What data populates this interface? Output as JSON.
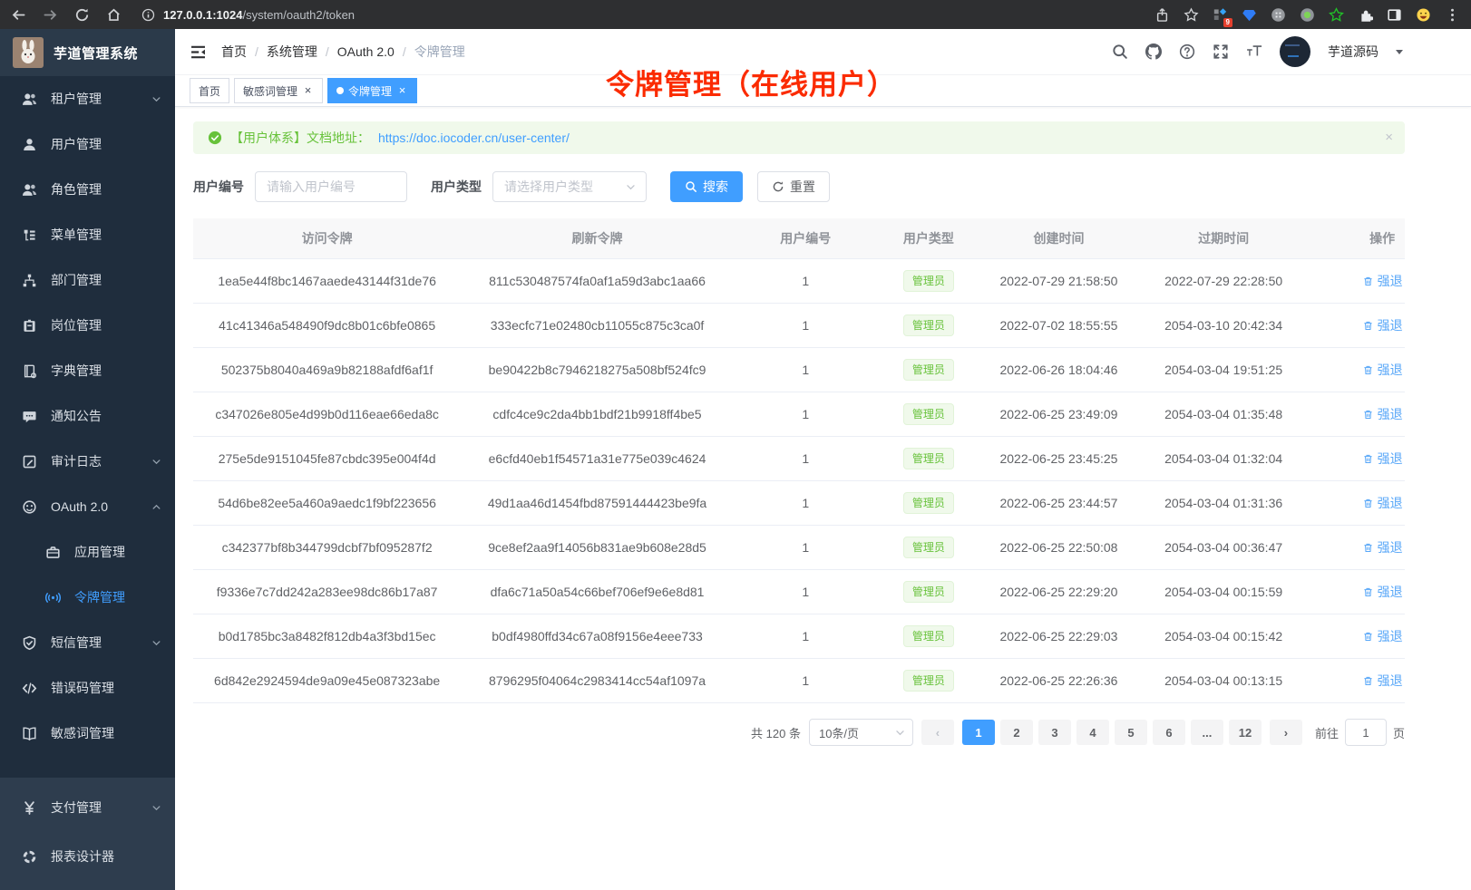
{
  "browser": {
    "url_host": "127.0.0.1:1024",
    "url_path": "/system/oauth2/token",
    "extension_badge": "9"
  },
  "sidebar": {
    "brand": "芋道管理系统",
    "items": [
      {
        "label": "租户管理",
        "icon": "tenant",
        "arrow": "down"
      },
      {
        "label": "用户管理",
        "icon": "user"
      },
      {
        "label": "角色管理",
        "icon": "role"
      },
      {
        "label": "菜单管理",
        "icon": "menu"
      },
      {
        "label": "部门管理",
        "icon": "dept"
      },
      {
        "label": "岗位管理",
        "icon": "post"
      },
      {
        "label": "字典管理",
        "icon": "dict"
      },
      {
        "label": "通知公告",
        "icon": "notice"
      },
      {
        "label": "审计日志",
        "icon": "log",
        "arrow": "down"
      },
      {
        "label": "OAuth 2.0",
        "icon": "oauth",
        "arrow": "up"
      },
      {
        "label": "应用管理",
        "icon": "app",
        "sub": true
      },
      {
        "label": "令牌管理",
        "icon": "token",
        "sub": true,
        "active": true
      },
      {
        "label": "短信管理",
        "icon": "sms",
        "arrow": "down"
      },
      {
        "label": "错误码管理",
        "icon": "errcode"
      },
      {
        "label": "敏感词管理",
        "icon": "sensitive"
      }
    ],
    "bottom_items": [
      {
        "label": "支付管理",
        "icon": "pay",
        "arrow": "down"
      },
      {
        "label": "报表设计器",
        "icon": "report"
      }
    ]
  },
  "header": {
    "breadcrumb": [
      "首页",
      "系统管理",
      "OAuth 2.0",
      "令牌管理"
    ],
    "username": "芋道源码"
  },
  "tabs": [
    {
      "label": "首页",
      "closable": false,
      "active": false
    },
    {
      "label": "敏感词管理",
      "closable": true,
      "active": false
    },
    {
      "label": "令牌管理",
      "closable": true,
      "active": true
    }
  ],
  "annotation": "令牌管理（在线用户）",
  "alert": {
    "text": "【用户体系】文档地址：",
    "link": "https://doc.iocoder.cn/user-center/"
  },
  "filters": {
    "user_id_label": "用户编号",
    "user_id_placeholder": "请输入用户编号",
    "user_type_label": "用户类型",
    "user_type_placeholder": "请选择用户类型",
    "search_label": "搜索",
    "reset_label": "重置"
  },
  "table": {
    "headers": [
      "访问令牌",
      "刷新令牌",
      "用户编号",
      "用户类型",
      "创建时间",
      "过期时间",
      "操作"
    ],
    "action_label": "强退",
    "rows": [
      {
        "access_token": "1ea5e44f8bc1467aaede43144f31de76",
        "refresh_token": "811c530487574fa0af1a59d3abc1aa66",
        "user_id": "1",
        "user_type": "管理员",
        "created_at": "2022-07-29 21:58:50",
        "expires_at": "2022-07-29 22:28:50"
      },
      {
        "access_token": "41c41346a548490f9dc8b01c6bfe0865",
        "refresh_token": "333ecfc71e02480cb11055c875c3ca0f",
        "user_id": "1",
        "user_type": "管理员",
        "created_at": "2022-07-02 18:55:55",
        "expires_at": "2054-03-10 20:42:34"
      },
      {
        "access_token": "502375b8040a469a9b82188afdf6af1f",
        "refresh_token": "be90422b8c7946218275a508bf524fc9",
        "user_id": "1",
        "user_type": "管理员",
        "created_at": "2022-06-26 18:04:46",
        "expires_at": "2054-03-04 19:51:25"
      },
      {
        "access_token": "c347026e805e4d99b0d116eae66eda8c",
        "refresh_token": "cdfc4ce9c2da4bb1bdf21b9918ff4be5",
        "user_id": "1",
        "user_type": "管理员",
        "created_at": "2022-06-25 23:49:09",
        "expires_at": "2054-03-04 01:35:48"
      },
      {
        "access_token": "275e5de9151045fe87cbdc395e004f4d",
        "refresh_token": "e6cfd40eb1f54571a31e775e039c4624",
        "user_id": "1",
        "user_type": "管理员",
        "created_at": "2022-06-25 23:45:25",
        "expires_at": "2054-03-04 01:32:04"
      },
      {
        "access_token": "54d6be82ee5a460a9aedc1f9bf223656",
        "refresh_token": "49d1aa46d1454fbd87591444423be9fa",
        "user_id": "1",
        "user_type": "管理员",
        "created_at": "2022-06-25 23:44:57",
        "expires_at": "2054-03-04 01:31:36"
      },
      {
        "access_token": "c342377bf8b344799dcbf7bf095287f2",
        "refresh_token": "9ce8ef2aa9f14056b831ae9b608e28d5",
        "user_id": "1",
        "user_type": "管理员",
        "created_at": "2022-06-25 22:50:08",
        "expires_at": "2054-03-04 00:36:47"
      },
      {
        "access_token": "f9336e7c7dd242a283ee98dc86b17a87",
        "refresh_token": "dfa6c71a50a54c66bef706ef9e6e8d81",
        "user_id": "1",
        "user_type": "管理员",
        "created_at": "2022-06-25 22:29:20",
        "expires_at": "2054-03-04 00:15:59"
      },
      {
        "access_token": "b0d1785bc3a8482f812db4a3f3bd15ec",
        "refresh_token": "b0df4980ffd34c67a08f9156e4eee733",
        "user_id": "1",
        "user_type": "管理员",
        "created_at": "2022-06-25 22:29:03",
        "expires_at": "2054-03-04 00:15:42"
      },
      {
        "access_token": "6d842e2924594de9a09e45e087323abe",
        "refresh_token": "8796295f04064c2983414cc54af1097a",
        "user_id": "1",
        "user_type": "管理员",
        "created_at": "2022-06-25 22:26:36",
        "expires_at": "2054-03-04 00:13:15"
      }
    ]
  },
  "pagination": {
    "total": "共 120 条",
    "page_size": "10条/页",
    "pages": [
      "1",
      "2",
      "3",
      "4",
      "5",
      "6",
      "...",
      "12"
    ],
    "active_page": "1",
    "goto_label": "前往",
    "goto_value": "1",
    "goto_unit": "页"
  },
  "colors": {
    "accent": "#409eff",
    "success": "#67c23a",
    "annotation_red": "#fb2b00",
    "sidebar_bg": "#1f2d3d"
  }
}
